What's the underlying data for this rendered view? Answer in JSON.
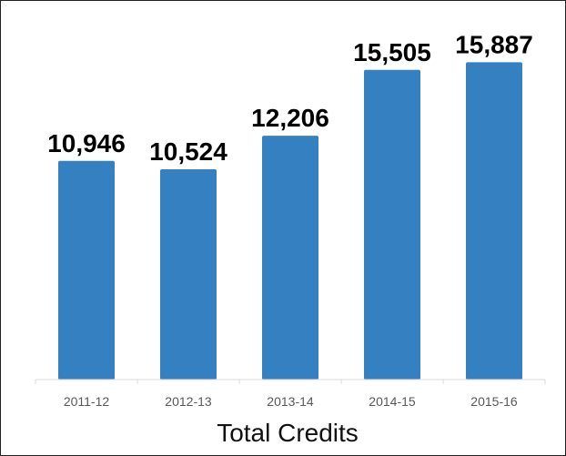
{
  "chart_data": {
    "type": "bar",
    "title": "Total Credits",
    "xlabel": "",
    "ylabel": "",
    "categories": [
      "2011-12",
      "2012-13",
      "2013-14",
      "2014-15",
      "2015-16"
    ],
    "values": [
      10946,
      10524,
      12206,
      15505,
      15887
    ],
    "data_labels": [
      "10,946",
      "10,524",
      "12,206",
      "15,505",
      "15,887"
    ],
    "ylim": [
      0,
      18000
    ],
    "grid": false,
    "legend": "none",
    "colors": {
      "bar": "#3580c0",
      "axis": "#d9d9d9",
      "tick_text": "#595959"
    }
  }
}
